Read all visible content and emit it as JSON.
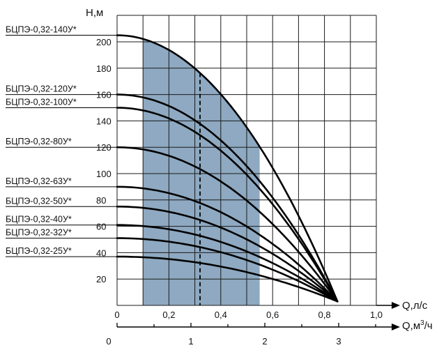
{
  "chart_data": {
    "type": "line",
    "y_axis": {
      "label": "H,м",
      "ticks": [
        20,
        40,
        60,
        80,
        100,
        120,
        140,
        160,
        180,
        200
      ],
      "range": [
        0,
        215
      ]
    },
    "x_axis_primary": {
      "label": "Q,л/с",
      "ticks": [
        "0",
        "0,2",
        "0,4",
        "0,6",
        "0,8",
        "1,0"
      ],
      "tick_values": [
        0,
        0.2,
        0.4,
        0.6,
        0.8,
        1.0
      ],
      "range": [
        0,
        1.0
      ]
    },
    "x_axis_secondary": {
      "label": "Q,м³/ч",
      "label_base": "Q,м",
      "label_sup": "3",
      "label_tail": "/ч",
      "ticks": [
        "0",
        "1",
        "2",
        "3"
      ],
      "tick_values": [
        0,
        1,
        2,
        3
      ]
    },
    "grid": true,
    "working_zone": {
      "q_from": 0.1,
      "q_to": 0.55,
      "color": "#8ea9c1"
    },
    "nominal_q": 0.32,
    "series_end_q": 0.85,
    "series_end_h": 3,
    "series": [
      {
        "name": "БЦПЭ-0,32-140У*",
        "h0": 205,
        "model_label": "БЦПЭ-0,32-140У*"
      },
      {
        "name": "БЦПЭ-0,32-120У*",
        "h0": 160,
        "model_label": "БЦПЭ-0,32-120У*"
      },
      {
        "name": "БЦПЭ-0,32-100У*",
        "h0": 150,
        "model_label": "БЦПЭ-0,32-100У*"
      },
      {
        "name": "БЦПЭ-0,32-80У*",
        "h0": 120,
        "model_label": "БЦПЭ-0,32-80У*"
      },
      {
        "name": "БЦПЭ-0,32-63У*",
        "h0": 90,
        "model_label": "БЦПЭ-0,32-63У*"
      },
      {
        "name": "БЦПЭ-0,32-50У*",
        "h0": 75,
        "model_label": "БЦПЭ-0,32-50У*"
      },
      {
        "name": "БЦПЭ-0,32-40У*",
        "h0": 61,
        "model_label": "БЦПЭ-0,32-40У*"
      },
      {
        "name": "БЦПЭ-0,32-32У*",
        "h0": 51,
        "model_label": "БЦПЭ-0,32-32У*"
      },
      {
        "name": "БЦПЭ-0,32-25У*",
        "h0": 37,
        "model_label": "БЦПЭ-0,32-25У*"
      }
    ]
  }
}
